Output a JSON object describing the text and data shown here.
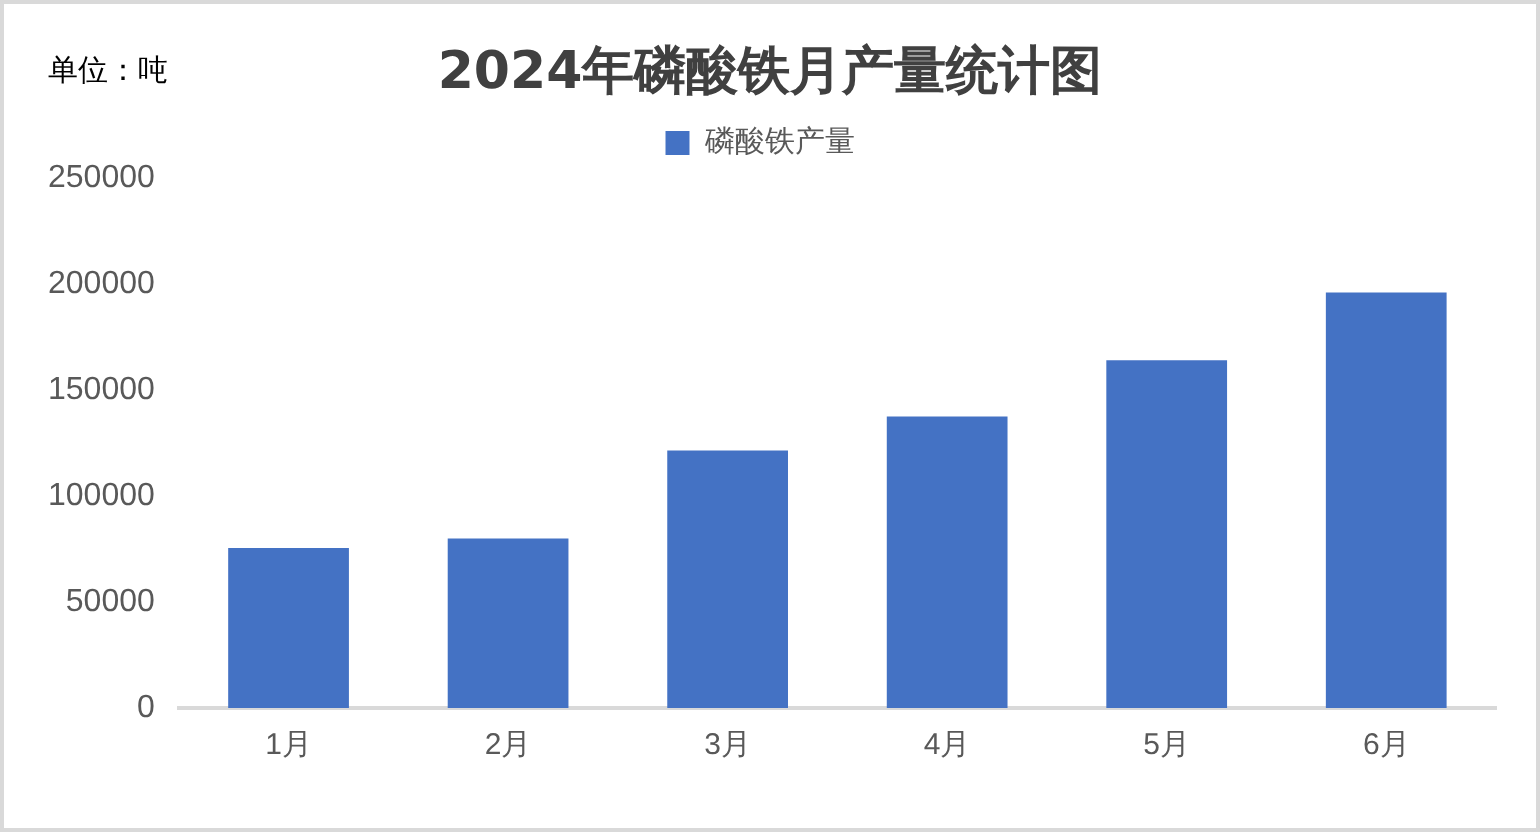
{
  "chart_data": {
    "type": "bar",
    "title": "2024年磷酸铁月产量统计图",
    "annotations": [
      "单位：吨"
    ],
    "categories": [
      "1月",
      "2月",
      "3月",
      "4月",
      "5月",
      "6月"
    ],
    "series": [
      {
        "name": "磷酸铁产量",
        "color": "#4472c4",
        "values": [
          75500,
          80000,
          121500,
          137500,
          164000,
          196000
        ]
      }
    ],
    "ylim": [
      0,
      250000
    ],
    "yticks": [
      0,
      50000,
      100000,
      150000,
      200000,
      250000
    ],
    "grid": false,
    "legend": "top"
  }
}
